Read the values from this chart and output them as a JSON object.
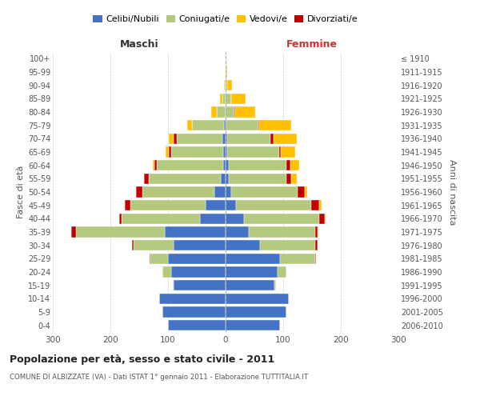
{
  "age_groups": [
    "0-4",
    "5-9",
    "10-14",
    "15-19",
    "20-24",
    "25-29",
    "30-34",
    "35-39",
    "40-44",
    "45-49",
    "50-54",
    "55-59",
    "60-64",
    "65-69",
    "70-74",
    "75-79",
    "80-84",
    "85-89",
    "90-94",
    "95-99",
    "100+"
  ],
  "birth_years": [
    "2006-2010",
    "2001-2005",
    "1996-2000",
    "1991-1995",
    "1986-1990",
    "1981-1985",
    "1976-1980",
    "1971-1975",
    "1966-1970",
    "1961-1965",
    "1956-1960",
    "1951-1955",
    "1946-1950",
    "1941-1945",
    "1936-1940",
    "1931-1935",
    "1926-1930",
    "1921-1925",
    "1916-1920",
    "1911-1915",
    "≤ 1910"
  ],
  "males": {
    "celibi": [
      100,
      110,
      115,
      90,
      95,
      100,
      90,
      105,
      45,
      35,
      20,
      8,
      4,
      4,
      5,
      3,
      0,
      0,
      0,
      0,
      0
    ],
    "coniugati": [
      0,
      0,
      0,
      2,
      15,
      30,
      70,
      155,
      135,
      130,
      125,
      125,
      115,
      90,
      80,
      55,
      15,
      5,
      2,
      0,
      0
    ],
    "vedovi": [
      0,
      0,
      0,
      0,
      0,
      0,
      0,
      0,
      0,
      0,
      1,
      1,
      2,
      5,
      8,
      8,
      10,
      5,
      1,
      0,
      0
    ],
    "divorziati": [
      0,
      0,
      0,
      0,
      0,
      2,
      3,
      8,
      5,
      10,
      10,
      8,
      5,
      5,
      5,
      0,
      0,
      0,
      0,
      0,
      0
    ]
  },
  "females": {
    "nubili": [
      95,
      105,
      110,
      85,
      90,
      95,
      60,
      40,
      32,
      18,
      10,
      6,
      5,
      3,
      3,
      2,
      0,
      0,
      0,
      0,
      0
    ],
    "coniugate": [
      0,
      0,
      0,
      2,
      15,
      60,
      95,
      115,
      130,
      130,
      115,
      100,
      100,
      90,
      75,
      55,
      15,
      10,
      3,
      1,
      0
    ],
    "vedove": [
      0,
      0,
      0,
      0,
      0,
      0,
      0,
      1,
      2,
      3,
      5,
      10,
      15,
      25,
      40,
      55,
      35,
      25,
      8,
      2,
      0
    ],
    "divorziate": [
      0,
      0,
      0,
      0,
      0,
      2,
      5,
      5,
      10,
      15,
      12,
      8,
      8,
      3,
      5,
      2,
      2,
      0,
      0,
      0,
      0
    ]
  },
  "colors": {
    "celibi_nubili": "#4472c4",
    "coniugati": "#b5c97e",
    "vedovi": "#ffc000",
    "divorziati": "#c00000"
  },
  "title": "Popolazione per età, sesso e stato civile - 2011",
  "subtitle": "COMUNE DI ALBIZZATE (VA) - Dati ISTAT 1° gennaio 2011 - Elaborazione TUTTITALIA.IT",
  "xlabel_left": "Maschi",
  "xlabel_right": "Femmine",
  "ylabel_left": "Fasce di età",
  "ylabel_right": "Anni di nascita",
  "xlim": 300,
  "legend_labels": [
    "Celibi/Nubili",
    "Coniugati/e",
    "Vedovi/e",
    "Divorziati/e"
  ],
  "background_color": "#ffffff",
  "grid_color": "#cccccc"
}
